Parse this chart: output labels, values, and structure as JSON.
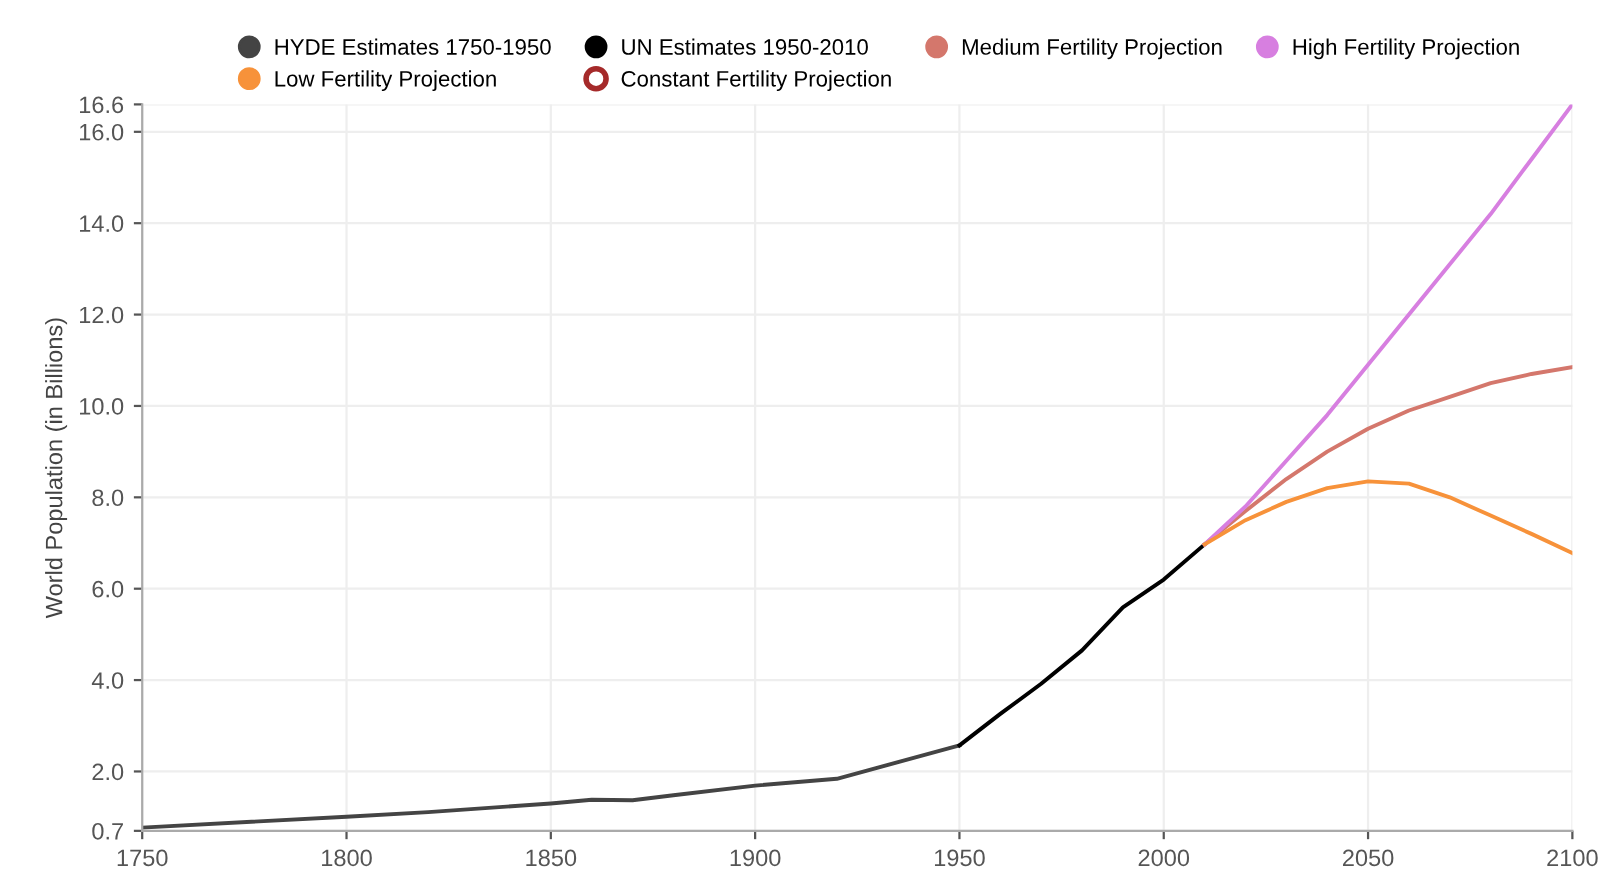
{
  "chart_data": {
    "type": "line",
    "ylabel": "World Population (in Billions)",
    "xlim": [
      1750,
      2100
    ],
    "xticks": [
      1750,
      1800,
      1850,
      1900,
      1950,
      2000,
      2050,
      2100
    ],
    "ylim": [
      0.7,
      16.6
    ],
    "yticks": [
      {
        "value": 0.7,
        "label": "0.7"
      },
      {
        "value": 2,
        "label": "2.0"
      },
      {
        "value": 4,
        "label": "4.0"
      },
      {
        "value": 6,
        "label": "6.0"
      },
      {
        "value": 8,
        "label": "8.0"
      },
      {
        "value": 10,
        "label": "10.0"
      },
      {
        "value": 12,
        "label": "12.0"
      },
      {
        "value": 14,
        "label": "14.0"
      },
      {
        "value": 16,
        "label": "16.0"
      },
      {
        "value": 16.6,
        "label": "16.6"
      }
    ],
    "grid": true,
    "legend": "top",
    "marker": "none",
    "line_style": "solid",
    "series": [
      {
        "name": "HYDE Estimates 1750-1950",
        "color": "#444444",
        "x": [
          1750,
          1800,
          1820,
          1850,
          1860,
          1870,
          1880,
          1900,
          1920,
          1950
        ],
        "values": [
          0.77,
          1.01,
          1.11,
          1.3,
          1.38,
          1.37,
          1.48,
          1.69,
          1.84,
          2.57
        ]
      },
      {
        "name": "UN Estimates 1950-2010",
        "color": "#000000",
        "x": [
          1950,
          1960,
          1970,
          1980,
          1990,
          2000,
          2010
        ],
        "values": [
          2.57,
          3.26,
          3.92,
          4.65,
          5.59,
          6.2,
          6.97
        ]
      },
      {
        "name": "Medium Fertility Projection",
        "color": "#d4776c",
        "x": [
          2010,
          2020,
          2030,
          2040,
          2050,
          2060,
          2070,
          2080,
          2090,
          2100
        ],
        "values": [
          6.97,
          7.7,
          8.4,
          9.0,
          9.5,
          9.9,
          10.2,
          10.5,
          10.7,
          10.85
        ]
      },
      {
        "name": "High Fertility Projection",
        "color": "#d77fe0",
        "x": [
          2010,
          2020,
          2030,
          2040,
          2050,
          2060,
          2070,
          2080,
          2090,
          2100
        ],
        "values": [
          6.97,
          7.8,
          8.8,
          9.8,
          10.9,
          12.0,
          13.1,
          14.2,
          15.4,
          16.6
        ]
      },
      {
        "name": "Low Fertility Projection",
        "color": "#f7923a",
        "x": [
          2010,
          2020,
          2030,
          2040,
          2050,
          2060,
          2070,
          2080,
          2090,
          2100
        ],
        "values": [
          6.97,
          7.5,
          7.9,
          8.2,
          8.35,
          8.3,
          8.0,
          7.6,
          7.2,
          6.78
        ]
      },
      {
        "name": "Constant Fertility Projection",
        "color": "#a52a2a"
      }
    ]
  }
}
